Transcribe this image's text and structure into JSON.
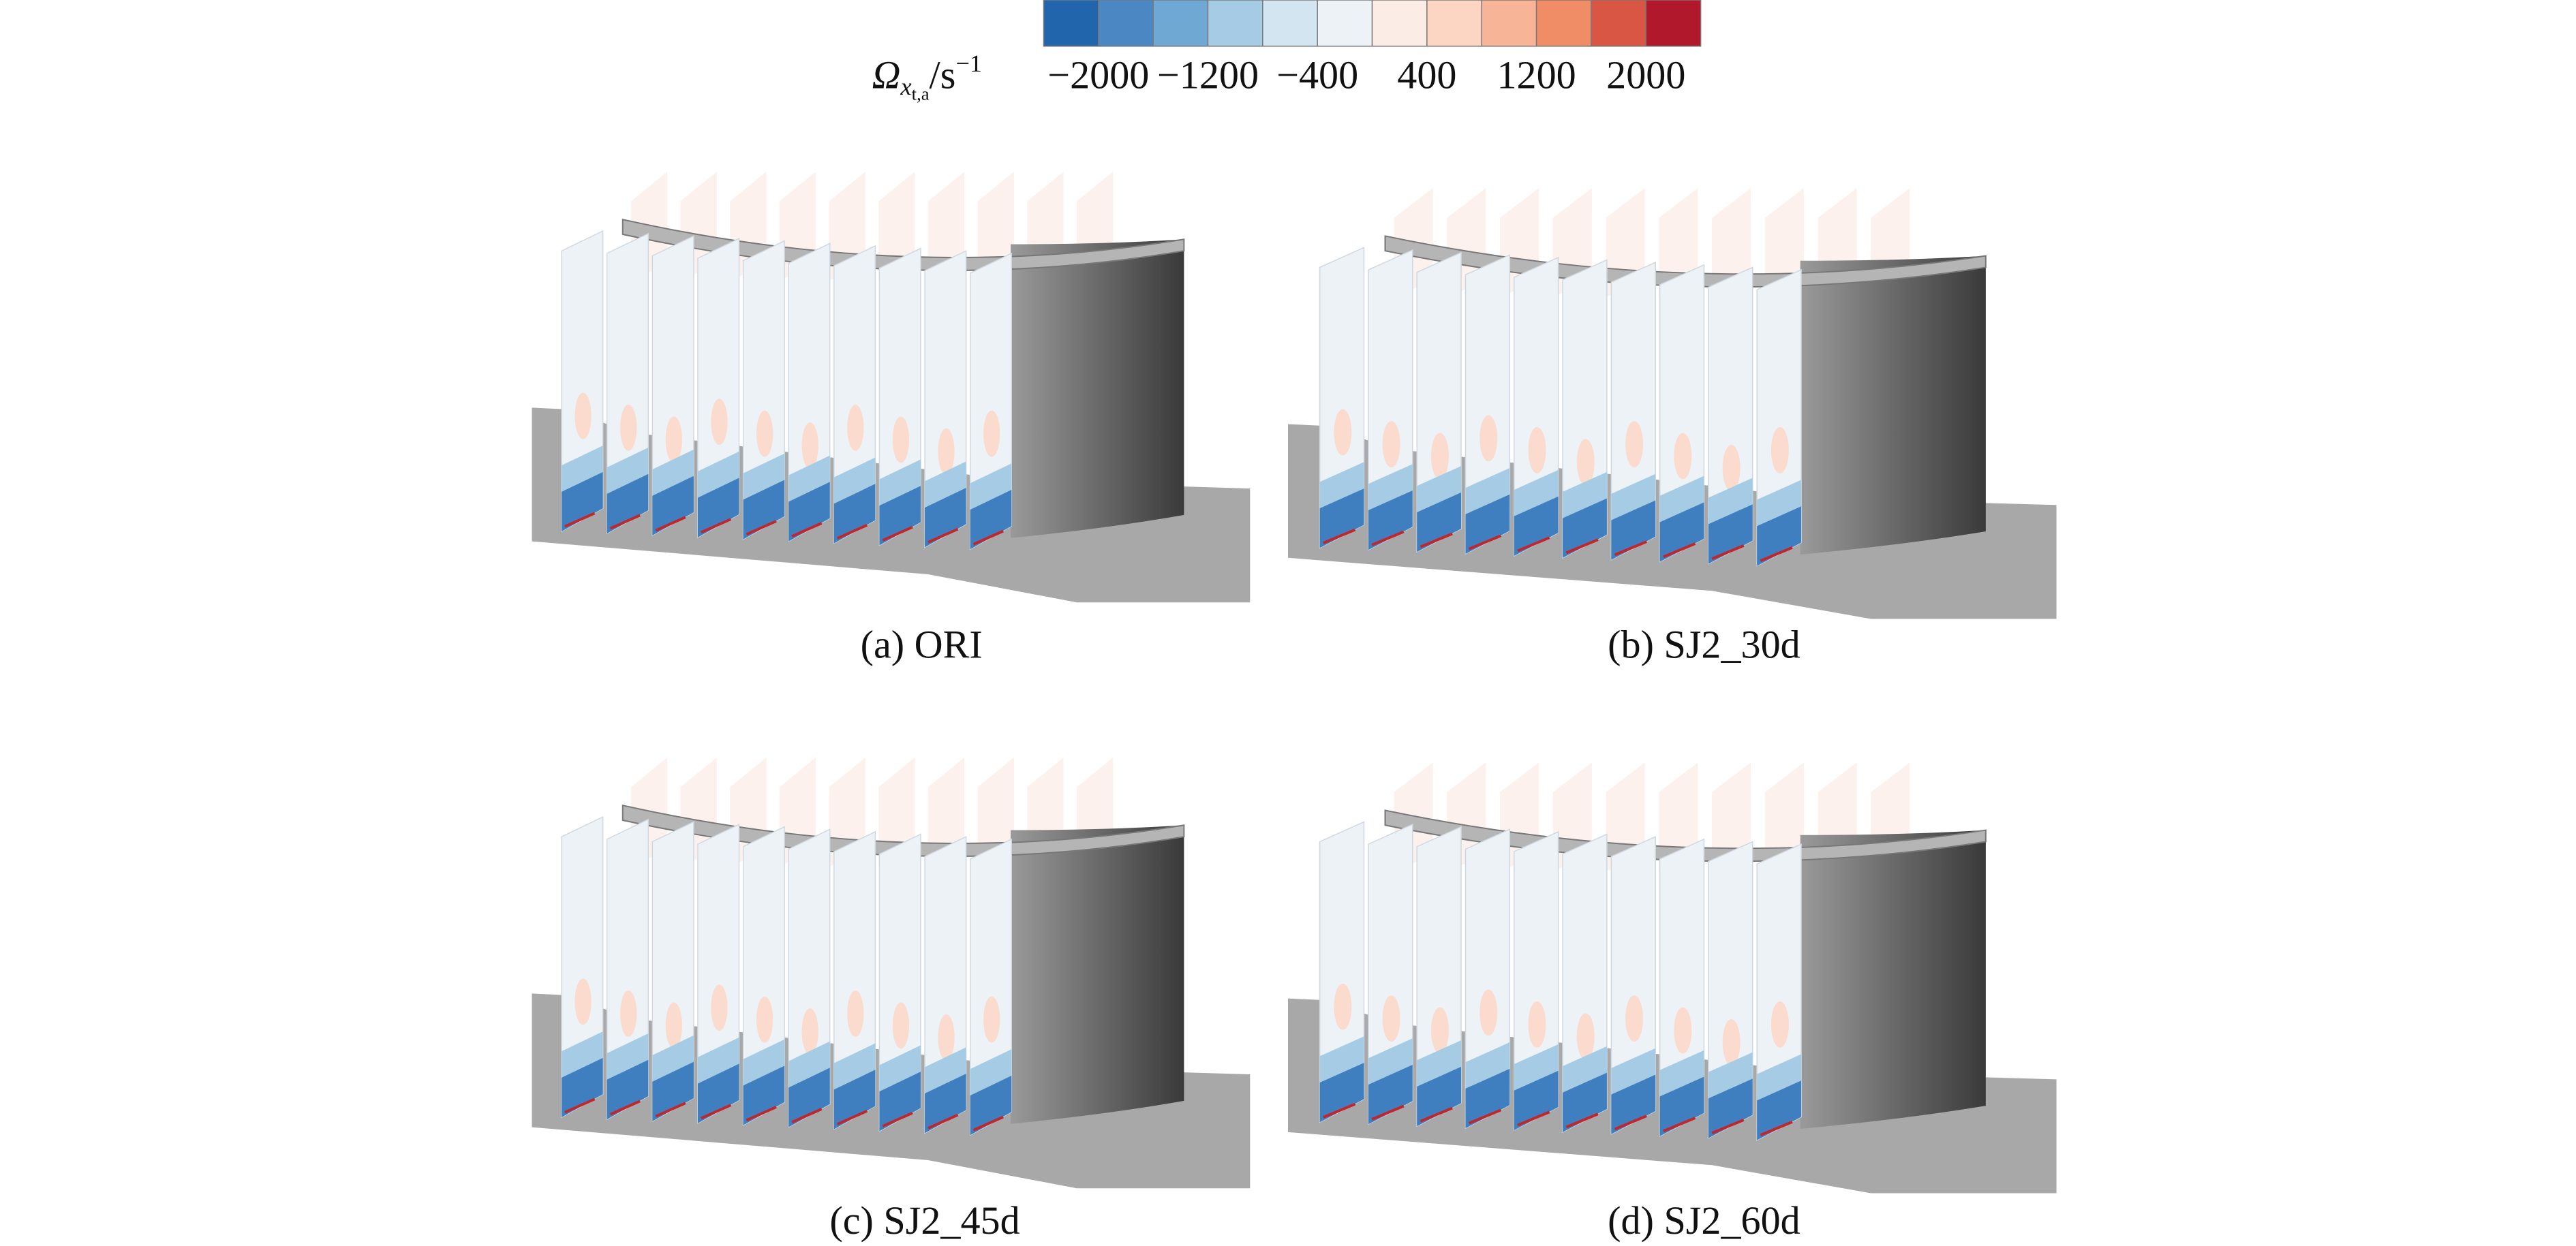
{
  "colorbar": {
    "label": {
      "symbol": "Ω",
      "subscript": "x",
      "subsubscript": "t,a",
      "unit": "/s",
      "exponent": "−1"
    },
    "lim": [
      -2400,
      2400
    ],
    "colors": [
      "#2166ac",
      "#4a87c3",
      "#6fa9d3",
      "#a5cce4",
      "#d2e5f0",
      "#ecf2f6",
      "#fbece6",
      "#fdd5c3",
      "#f8b496",
      "#f08c66",
      "#d95645",
      "#b2182b"
    ],
    "ticks": [
      {
        "value": -2000,
        "label": "−2000"
      },
      {
        "value": -1200,
        "label": "−1200"
      },
      {
        "value": -400,
        "label": "−400"
      },
      400,
      1200,
      2000
    ]
  },
  "panels": [
    {
      "caption": "(a) ORI"
    },
    {
      "caption": "(b) SJ2_30d"
    },
    {
      "caption": "(c) SJ2_45d"
    },
    {
      "caption": "(d) SJ2_60d"
    }
  ]
}
